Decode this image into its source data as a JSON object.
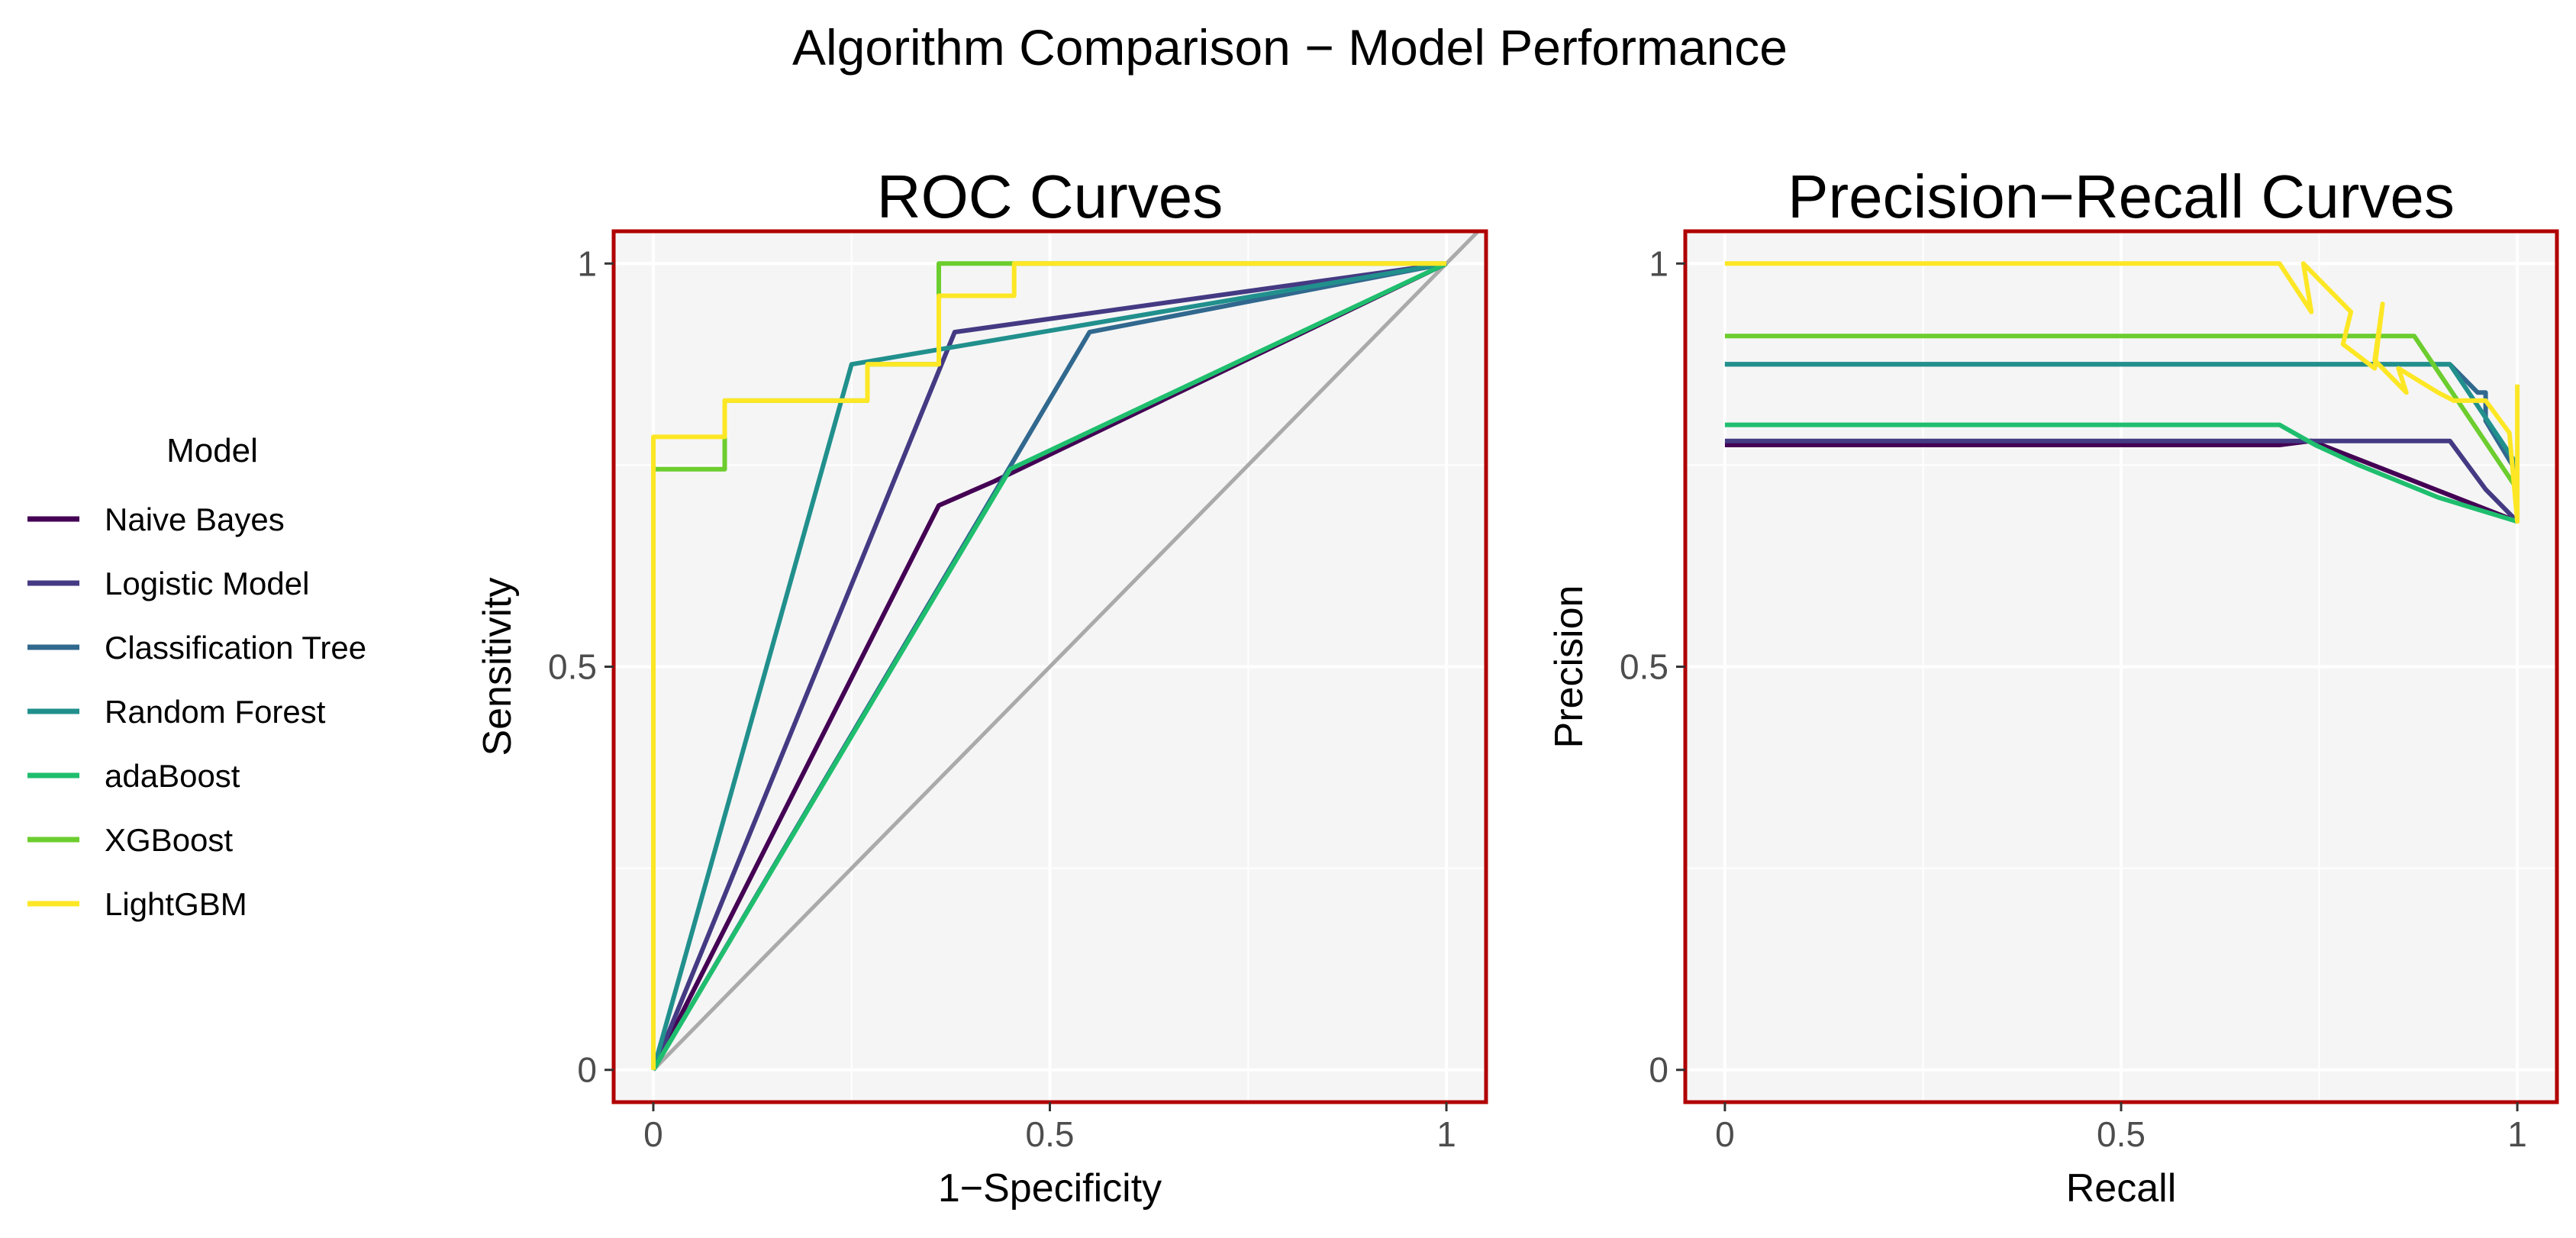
{
  "figure": {
    "title": "Algorithm Comparison − Model Performance"
  },
  "legend": {
    "title": "Model"
  },
  "colors": {
    "panel_bg": "#f5f5f5",
    "panel_border": "#b00000",
    "grid": "#ffffff",
    "diagonal": "#aaaaaa",
    "text": "#000000",
    "tick_text": "#4d4d4d"
  },
  "models": [
    {
      "name": "Naive Bayes",
      "color": "#440154"
    },
    {
      "name": "Logistic Model",
      "color": "#443a83"
    },
    {
      "name": "Classification Tree",
      "color": "#31688e"
    },
    {
      "name": "Random Forest",
      "color": "#21908d"
    },
    {
      "name": "adaBoost",
      "color": "#1fbe6e"
    },
    {
      "name": "XGBoost",
      "color": "#6ccd2e"
    },
    {
      "name": "LightGBM",
      "color": "#fde725"
    }
  ],
  "chart_data": [
    {
      "type": "line",
      "title": "ROC Curves",
      "xlabel": "1−Specificity",
      "ylabel": "Sensitivity",
      "xlim": [
        -0.05,
        1.05
      ],
      "ylim": [
        -0.04,
        1.04
      ],
      "xticks": [
        0,
        0.5,
        1
      ],
      "xtick_labels": [
        "0",
        "0.5",
        "1"
      ],
      "yticks": [
        0,
        0.5,
        1
      ],
      "ytick_labels": [
        "0",
        "0.5",
        "1"
      ],
      "reference_line": {
        "x": [
          0,
          1.05
        ],
        "y": [
          0,
          1.05
        ]
      },
      "series": [
        {
          "name": "Naive Bayes",
          "x": [
            0,
            0.36,
            0.43,
            1
          ],
          "y": [
            0,
            0.7,
            0.73,
            1
          ]
        },
        {
          "name": "Logistic Model",
          "x": [
            0,
            0.38,
            1
          ],
          "y": [
            0,
            0.915,
            1
          ]
        },
        {
          "name": "Classification Tree",
          "x": [
            0,
            0.55,
            1
          ],
          "y": [
            0,
            0.915,
            1
          ]
        },
        {
          "name": "Random Forest",
          "x": [
            0,
            0.25,
            1
          ],
          "y": [
            0,
            0.875,
            1
          ]
        },
        {
          "name": "adaBoost",
          "x": [
            0,
            0.45,
            1
          ],
          "y": [
            0,
            0.745,
            1
          ]
        },
        {
          "name": "XGBoost",
          "x": [
            0,
            0,
            0.09,
            0.09,
            0.27,
            0.27,
            0.36,
            0.36,
            1
          ],
          "y": [
            0,
            0.745,
            0.745,
            0.83,
            0.83,
            0.875,
            0.875,
            1,
            1
          ]
        },
        {
          "name": "LightGBM",
          "x": [
            0,
            0,
            0.09,
            0.09,
            0.27,
            0.27,
            0.36,
            0.36,
            0.455,
            0.455,
            1
          ],
          "y": [
            0,
            0.785,
            0.785,
            0.83,
            0.83,
            0.875,
            0.875,
            0.96,
            0.96,
            1,
            1
          ]
        }
      ]
    },
    {
      "type": "line",
      "title": "Precision−Recall Curves",
      "xlabel": "Recall",
      "ylabel": "Precision",
      "xlim": [
        -0.05,
        1.05
      ],
      "ylim": [
        -0.04,
        1.04
      ],
      "xticks": [
        0,
        0.5,
        1
      ],
      "xtick_labels": [
        "0",
        "0.5",
        "1"
      ],
      "yticks": [
        0,
        0.5,
        1
      ],
      "ytick_labels": [
        "0",
        "0.5",
        "1"
      ],
      "series": [
        {
          "name": "Naive Bayes",
          "x": [
            0,
            0.7,
            0.74,
            1
          ],
          "y": [
            0.775,
            0.775,
            0.78,
            0.68
          ]
        },
        {
          "name": "Logistic Model",
          "x": [
            0,
            0.915,
            0.96,
            1
          ],
          "y": [
            0.78,
            0.78,
            0.72,
            0.68
          ]
        },
        {
          "name": "Classification Tree",
          "x": [
            0,
            0.915,
            0.95,
            0.96,
            0.96,
            1
          ],
          "y": [
            0.875,
            0.875,
            0.84,
            0.84,
            0.805,
            0.74
          ]
        },
        {
          "name": "Random Forest",
          "x": [
            0,
            0.915,
            1
          ],
          "y": [
            0.875,
            0.875,
            0.75
          ]
        },
        {
          "name": "adaBoost",
          "x": [
            0,
            0.7,
            0.745,
            0.8,
            0.85,
            0.9,
            0.95,
            1
          ],
          "y": [
            0.8,
            0.8,
            0.775,
            0.75,
            0.73,
            0.71,
            0.695,
            0.68
          ]
        },
        {
          "name": "XGBoost",
          "x": [
            0,
            0.87,
            1
          ],
          "y": [
            0.91,
            0.91,
            0.72
          ]
        },
        {
          "name": "LightGBM",
          "x": [
            0,
            0.7,
            0.74,
            0.73,
            0.77,
            0.79,
            0.78,
            0.82,
            0.83,
            0.82,
            0.86,
            0.85,
            0.9,
            0.92,
            0.96,
            0.99,
            1,
            1
          ],
          "y": [
            1,
            1,
            0.94,
            1,
            0.96,
            0.94,
            0.9,
            0.87,
            0.95,
            0.88,
            0.84,
            0.87,
            0.84,
            0.83,
            0.83,
            0.79,
            0.68,
            0.85
          ]
        }
      ]
    }
  ]
}
